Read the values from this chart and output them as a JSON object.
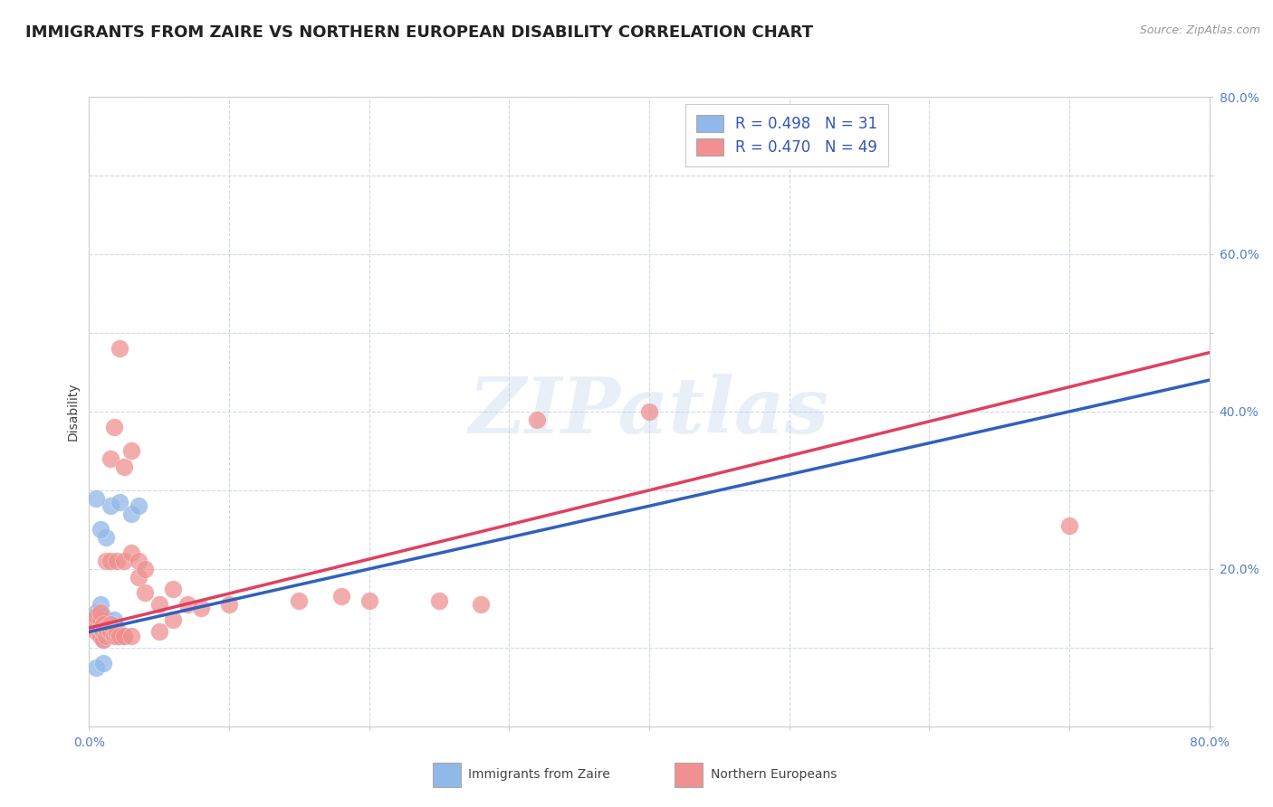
{
  "title": "IMMIGRANTS FROM ZAIRE VS NORTHERN EUROPEAN DISABILITY CORRELATION CHART",
  "source_text": "Source: ZipAtlas.com",
  "ylabel": "Disability",
  "xlim": [
    0.0,
    0.8
  ],
  "ylim": [
    0.0,
    0.8
  ],
  "xticks": [
    0.0,
    0.1,
    0.2,
    0.3,
    0.4,
    0.5,
    0.6,
    0.7,
    0.8
  ],
  "yticks": [
    0.0,
    0.1,
    0.2,
    0.3,
    0.4,
    0.5,
    0.6,
    0.7,
    0.8
  ],
  "legend_items": [
    {
      "label": "R = 0.498   N = 31",
      "color": "#a8c8f0"
    },
    {
      "label": "R = 0.470   N = 49",
      "color": "#f0a8b8"
    }
  ],
  "zaire_color": "#90b8e8",
  "northern_color": "#f09090",
  "zaire_line_color": "#3060c0",
  "northern_line_color": "#e04060",
  "watermark": "ZIPatlas",
  "zaire_points": [
    [
      0.005,
      0.125
    ],
    [
      0.005,
      0.135
    ],
    [
      0.005,
      0.145
    ],
    [
      0.008,
      0.115
    ],
    [
      0.008,
      0.125
    ],
    [
      0.008,
      0.135
    ],
    [
      0.008,
      0.155
    ],
    [
      0.01,
      0.11
    ],
    [
      0.01,
      0.12
    ],
    [
      0.01,
      0.13
    ],
    [
      0.01,
      0.14
    ],
    [
      0.012,
      0.115
    ],
    [
      0.012,
      0.125
    ],
    [
      0.012,
      0.135
    ],
    [
      0.015,
      0.12
    ],
    [
      0.015,
      0.13
    ],
    [
      0.015,
      0.28
    ],
    [
      0.018,
      0.125
    ],
    [
      0.018,
      0.135
    ],
    [
      0.02,
      0.115
    ],
    [
      0.02,
      0.125
    ],
    [
      0.02,
      0.115
    ],
    [
      0.022,
      0.285
    ],
    [
      0.025,
      0.115
    ],
    [
      0.03,
      0.27
    ],
    [
      0.035,
      0.28
    ],
    [
      0.005,
      0.29
    ],
    [
      0.012,
      0.24
    ],
    [
      0.008,
      0.25
    ],
    [
      0.005,
      0.075
    ],
    [
      0.01,
      0.08
    ]
  ],
  "northern_points": [
    [
      0.005,
      0.12
    ],
    [
      0.005,
      0.13
    ],
    [
      0.005,
      0.14
    ],
    [
      0.008,
      0.115
    ],
    [
      0.008,
      0.125
    ],
    [
      0.008,
      0.135
    ],
    [
      0.008,
      0.145
    ],
    [
      0.01,
      0.11
    ],
    [
      0.01,
      0.12
    ],
    [
      0.01,
      0.13
    ],
    [
      0.012,
      0.115
    ],
    [
      0.012,
      0.125
    ],
    [
      0.012,
      0.21
    ],
    [
      0.015,
      0.12
    ],
    [
      0.015,
      0.13
    ],
    [
      0.015,
      0.21
    ],
    [
      0.015,
      0.34
    ],
    [
      0.018,
      0.115
    ],
    [
      0.018,
      0.38
    ],
    [
      0.02,
      0.115
    ],
    [
      0.02,
      0.12
    ],
    [
      0.02,
      0.21
    ],
    [
      0.022,
      0.115
    ],
    [
      0.022,
      0.48
    ],
    [
      0.025,
      0.115
    ],
    [
      0.025,
      0.21
    ],
    [
      0.025,
      0.33
    ],
    [
      0.03,
      0.115
    ],
    [
      0.03,
      0.22
    ],
    [
      0.03,
      0.35
    ],
    [
      0.035,
      0.19
    ],
    [
      0.035,
      0.21
    ],
    [
      0.04,
      0.17
    ],
    [
      0.04,
      0.2
    ],
    [
      0.05,
      0.12
    ],
    [
      0.05,
      0.155
    ],
    [
      0.06,
      0.135
    ],
    [
      0.06,
      0.175
    ],
    [
      0.07,
      0.155
    ],
    [
      0.08,
      0.15
    ],
    [
      0.1,
      0.155
    ],
    [
      0.15,
      0.16
    ],
    [
      0.18,
      0.165
    ],
    [
      0.2,
      0.16
    ],
    [
      0.25,
      0.16
    ],
    [
      0.28,
      0.155
    ],
    [
      0.32,
      0.39
    ],
    [
      0.4,
      0.4
    ],
    [
      0.7,
      0.255
    ]
  ],
  "northern_line": {
    "x0": 0.0,
    "y0": 0.125,
    "x1": 0.8,
    "y1": 0.475
  },
  "zaire_line": {
    "x0": 0.0,
    "y0": 0.12,
    "x1": 0.8,
    "y1": 0.44
  },
  "background_color": "#ffffff",
  "grid_color": "#d0d8e8",
  "title_fontsize": 13,
  "axis_label_fontsize": 10,
  "tick_fontsize": 10,
  "legend_fontsize": 12
}
